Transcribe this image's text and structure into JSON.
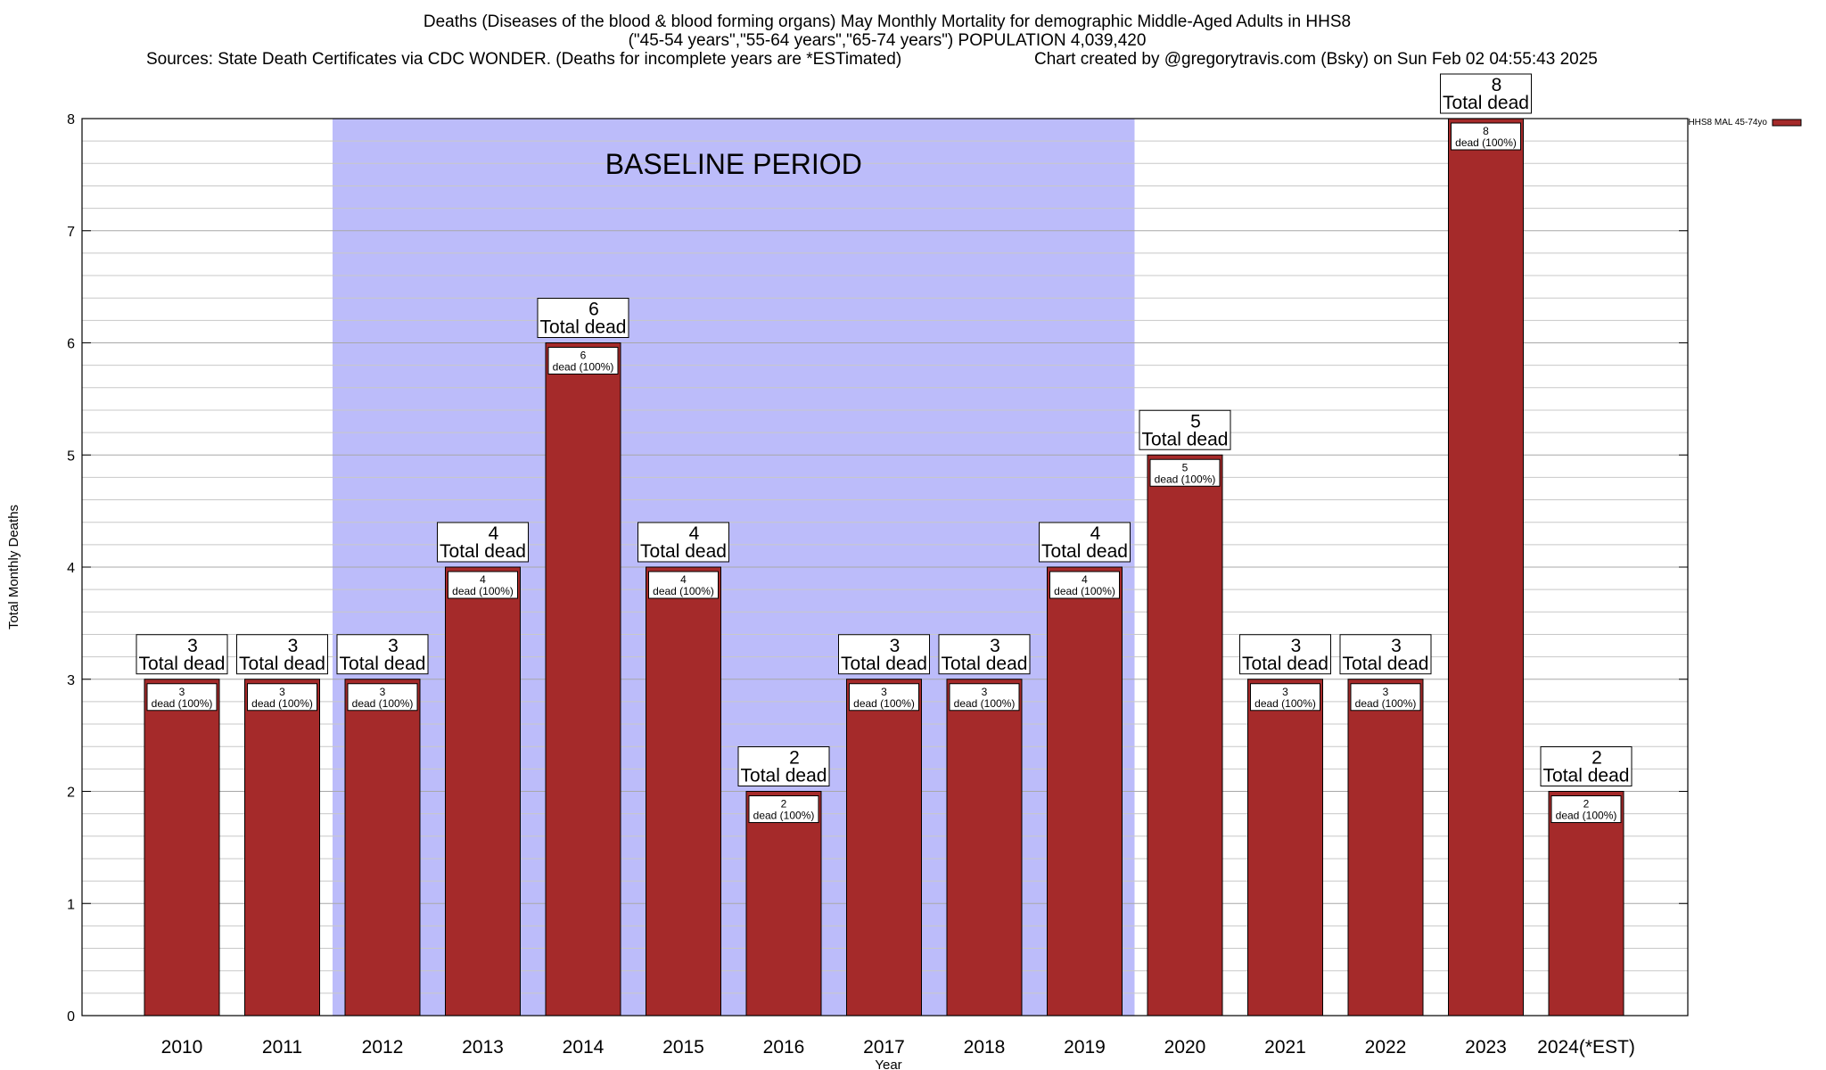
{
  "titles": [
    "Deaths (Diseases of the blood & blood forming organs) May Monthly Mortality for demographic Middle-Aged Adults in HHS8",
    "(\"45-54 years\",\"55-64 years\",\"65-74 years\") POPULATION 4,039,420",
    "Sources: State Death Certificates via CDC WONDER. (Deaths for incomplete years are *ESTimated)",
    "Chart created by @gregorytravis.com (Bsky) on Sun Feb 02 04:55:43 2025"
  ],
  "colors": {
    "bar": "#a52a2a",
    "baseline_band": "#bcbcfa",
    "grid": "#c8c8c8"
  },
  "chart_data": {
    "type": "bar",
    "xlabel": "Year",
    "ylabel": "Total Monthly Deaths",
    "ylim": [
      0,
      8
    ],
    "yticks": [
      "0",
      "1",
      "2",
      "3",
      "4",
      "5",
      "6",
      "7",
      "8"
    ],
    "grid": true,
    "legend_position": "top-right",
    "categories": [
      "2010",
      "2011",
      "2012",
      "2013",
      "2014",
      "2015",
      "2016",
      "2017",
      "2018",
      "2019",
      "2020",
      "2021",
      "2022",
      "2023",
      "2024(*EST)"
    ],
    "series": [
      {
        "name": "HHS8 MAL 45-74yo",
        "values": [
          3,
          3,
          3,
          4,
          6,
          4,
          2,
          3,
          3,
          4,
          5,
          3,
          3,
          8,
          2
        ]
      }
    ],
    "top_label_text": "Total dead",
    "inner_label_text": "dead (100%)",
    "baseline": {
      "label": "BASELINE PERIOD",
      "from": "2012",
      "to": "2019"
    }
  }
}
